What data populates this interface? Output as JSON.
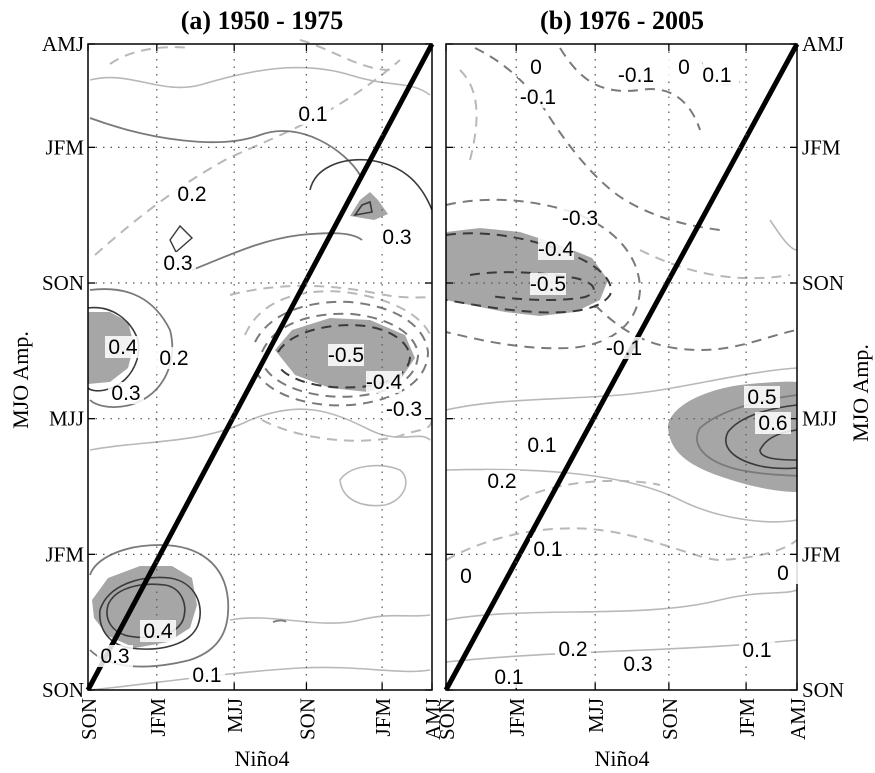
{
  "chart_data": [
    {
      "type": "contour",
      "title": "(a) 1950 - 1975",
      "xlabel": "Niño4",
      "ylabel": "MJO Amp.",
      "x_ticks": [
        "SON",
        "JFM",
        "MJJ",
        "SON",
        "JFM",
        "AMJ"
      ],
      "y_ticks": [
        "SON",
        "JFM",
        "MJJ",
        "SON",
        "JFM",
        "AMJ"
      ],
      "grid": true,
      "diagonal_line": true,
      "shaded": "significant regions (gray)",
      "contour_labels": [
        "0.1",
        "0.2",
        "0.3",
        "0.3",
        "0.4",
        "0.2",
        "0.3",
        "-0.5",
        "-0.4",
        "-0.3",
        "0.3",
        "0.4",
        "0.1"
      ]
    },
    {
      "type": "contour",
      "title": "(b) 1976 - 2005",
      "xlabel": "Niño4",
      "ylabel": "MJO Amp.",
      "x_ticks": [
        "SON",
        "JFM",
        "MJJ",
        "SON",
        "JFM",
        "AMJ"
      ],
      "y_ticks": [
        "SON",
        "JFM",
        "MJJ",
        "SON",
        "JFM",
        "AMJ"
      ],
      "grid": true,
      "diagonal_line": true,
      "shaded": "significant regions (gray)",
      "contour_labels": [
        "0",
        "-0.1",
        "-0.1",
        "0",
        "0.1",
        "-0.3",
        "-0.4",
        "-0.5",
        "-0.1",
        "0.5",
        "0.6",
        "0.1",
        "0.2",
        "0.1",
        "0",
        "0",
        "0.2",
        "0.3",
        "0.1",
        "0.1"
      ]
    }
  ],
  "colors": {
    "shade": "#a6a6a6",
    "dark": "#3a3a3a",
    "mid": "#7a7a7a",
    "light": "#b8b8b8",
    "line": "#000000"
  }
}
